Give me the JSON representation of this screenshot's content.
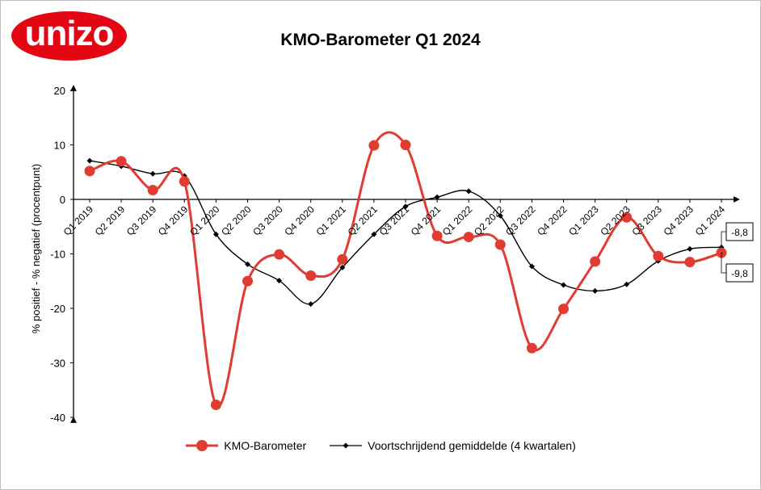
{
  "logo": {
    "text": "unizo"
  },
  "colors": {
    "barometer": "#e03c31",
    "average": "#000000",
    "logo": "#e30613"
  },
  "chart_data": {
    "type": "line",
    "title": "KMO-Barometer Q1 2024",
    "xlabel": "",
    "ylabel": "% positief - % negatief (procentpunt)",
    "ylim": [
      -40,
      20
    ],
    "yticks": [
      -40,
      -30,
      -20,
      -10,
      0,
      10,
      20
    ],
    "grid": false,
    "legend": "bottom",
    "categories": [
      "Q1 2019",
      "Q2 2019",
      "Q3 2019",
      "Q4 2019",
      "Q1 2020",
      "Q2 2020",
      "Q3 2020",
      "Q4 2020",
      "Q1 2021",
      "Q2 2021",
      "Q3 2021",
      "Q4 2021",
      "Q1 2022",
      "Q2 2022",
      "Q3 2022",
      "Q4 2022",
      "Q1 2023",
      "Q2 2023",
      "Q3 2023",
      "Q4 2023",
      "Q1 2024"
    ],
    "series": [
      {
        "name": "KMO-Barometer",
        "values": [
          5.2,
          7.0,
          1.7,
          3.3,
          -37.7,
          -15.0,
          -10.1,
          -14.0,
          -11.0,
          9.9,
          10.0,
          -6.7,
          -6.9,
          -8.3,
          -27.3,
          -20.1,
          -11.4,
          -3.3,
          -10.4,
          -11.5,
          -9.8
        ]
      },
      {
        "name": "Voortschrijdend gemiddelde (4 kwartalen)",
        "values": [
          7.1,
          6.1,
          4.7,
          4.3,
          -6.4,
          -11.9,
          -14.9,
          -19.2,
          -12.5,
          -6.4,
          -1.3,
          0.4,
          1.5,
          -3.0,
          -12.3,
          -15.7,
          -16.8,
          -15.6,
          -11.3,
          -9.1,
          -8.8
        ]
      }
    ],
    "annotations": [
      {
        "series": "Voortschrijdend gemiddelde (4 kwartalen)",
        "category": "Q1 2024",
        "label": "-8,8"
      },
      {
        "series": "KMO-Barometer",
        "category": "Q1 2024",
        "label": "-9,8"
      }
    ]
  }
}
